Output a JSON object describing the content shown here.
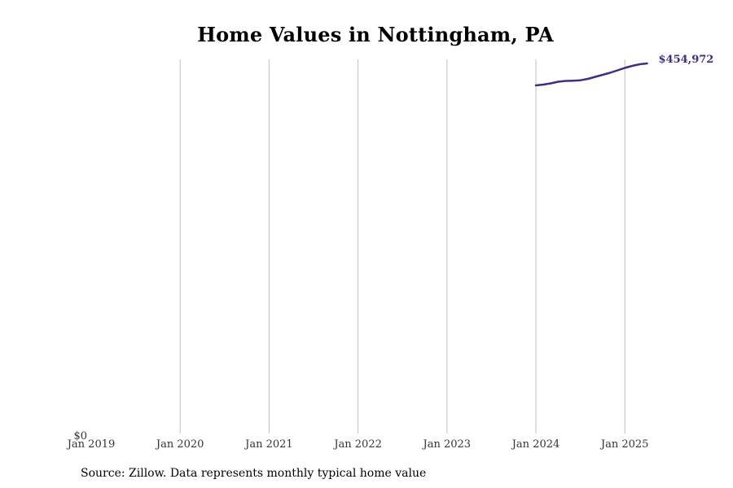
{
  "title": "Home Values in Nottingham, PA",
  "source_note": "Source: Zillow. Data represents monthly typical home value",
  "colors": {
    "line": "#3d2d8c",
    "grid": "#c0c0c0",
    "tick_text": "#333333",
    "title_text": "#000000"
  },
  "chart_data": {
    "type": "line",
    "title": "Home Values in Nottingham, PA",
    "xlabel": "",
    "ylabel": "",
    "xlim": [
      "2019-01",
      "2025-07"
    ],
    "ylim": [
      0,
      460000
    ],
    "grid": "vertical",
    "x_tick_labels": [
      "Jan 2019",
      "Jan 2020",
      "Jan 2021",
      "Jan 2022",
      "Jan 2023",
      "Jan 2024",
      "Jan 2025"
    ],
    "y_tick_labels": [
      "$0"
    ],
    "end_label": "$454,972",
    "series": [
      {
        "color": "#3d2d8c",
        "x": [
          "2024-01",
          "2024-02",
          "2024-03",
          "2024-04",
          "2024-05",
          "2024-06",
          "2024-07",
          "2024-08",
          "2024-09",
          "2024-10",
          "2024-11",
          "2024-12",
          "2025-01",
          "2025-02",
          "2025-03",
          "2025-04"
        ],
        "values": [
          428000,
          429000,
          430500,
          432500,
          433500,
          433800,
          434300,
          436000,
          438500,
          441000,
          443500,
          446500,
          449500,
          452000,
          454000,
          454972
        ]
      }
    ]
  }
}
